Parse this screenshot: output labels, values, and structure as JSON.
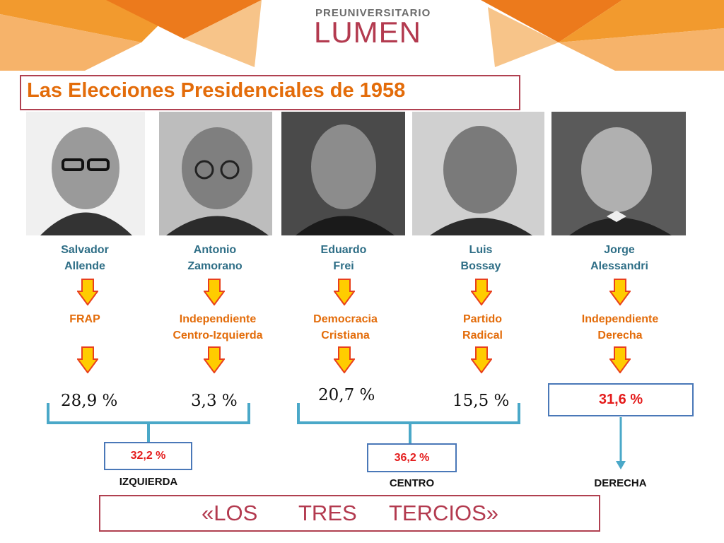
{
  "brand": {
    "top": "PREUNIVERSITARIO",
    "main": "LUMEN"
  },
  "title": "Las Elecciones Presidenciales de 1958",
  "candidates": [
    {
      "name1": "Salvador",
      "name2": "Allende",
      "party1": "FRAP",
      "party2": "",
      "percent": "28,9 %"
    },
    {
      "name1": "Antonio",
      "name2": "Zamorano",
      "party1": "Independiente",
      "party2": "Centro-Izquierda",
      "percent": "3,3 %"
    },
    {
      "name1": "Eduardo",
      "name2": "Frei",
      "party1": "Democracia",
      "party2": "Cristiana",
      "percent": "20,7 %"
    },
    {
      "name1": "Luis",
      "name2": "Bossay",
      "party1": "Partido",
      "party2": "Radical",
      "percent": "15,5 %"
    },
    {
      "name1": "Jorge",
      "name2": "Alessandri",
      "party1": "Independiente",
      "party2": "Derecha",
      "percent": "31,6 %"
    }
  ],
  "blocs": [
    {
      "percent": "32,2 %",
      "label": "IZQUIERDA"
    },
    {
      "percent": "36,2 %",
      "label": "CENTRO"
    },
    {
      "label": "DERECHA"
    }
  ],
  "footer": {
    "word1": "«LOS",
    "word2": "TRES",
    "word3": "TERCIOS»"
  },
  "colors": {
    "accent": "#e36c0a",
    "name": "#2e6e86",
    "bracket": "#4aa8c8",
    "red": "#e41b1b",
    "frame": "#b04050",
    "arrow_fill": "#ffcc00",
    "arrow_stroke": "#e8401c"
  }
}
